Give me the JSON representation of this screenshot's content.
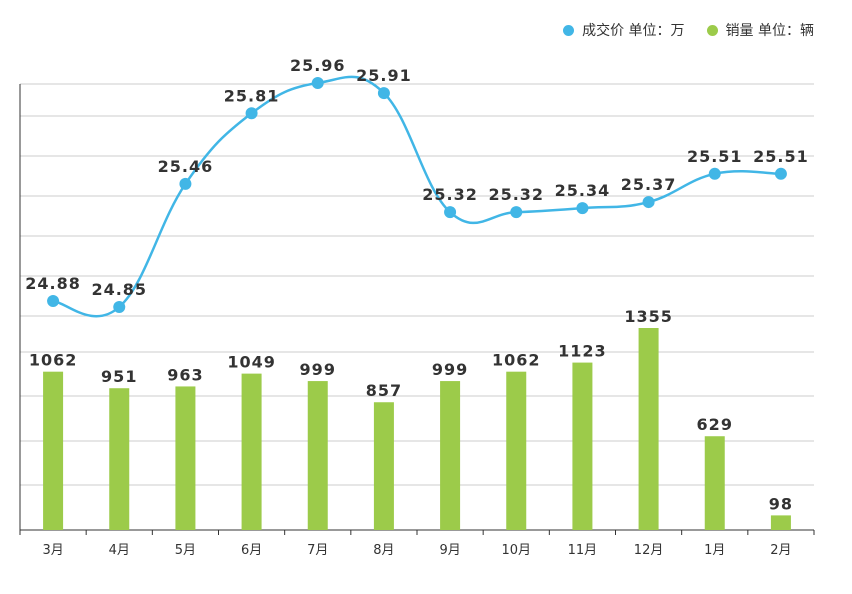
{
  "legend": {
    "series1_label": "成交价  单位：万",
    "series2_label": "销量  单位：辆"
  },
  "colors": {
    "line": "#41b6e6",
    "bar": "#9ccb4a",
    "grid": "#cccccc",
    "axis": "#333333"
  },
  "chart_data": {
    "type": "bar",
    "categories": [
      "3月",
      "4月",
      "5月",
      "6月",
      "7月",
      "8月",
      "9月",
      "10月",
      "11月",
      "12月",
      "1月",
      "2月"
    ],
    "series": [
      {
        "name": "成交价  单位：万",
        "type": "line",
        "smooth": true,
        "values": [
          24.88,
          24.85,
          25.46,
          25.81,
          25.96,
          25.91,
          25.32,
          25.32,
          25.34,
          25.37,
          25.51,
          25.51
        ]
      },
      {
        "name": "销量  单位：辆",
        "type": "bar",
        "values": [
          1062,
          951,
          963,
          1049,
          999,
          857,
          999,
          1062,
          1123,
          1355,
          629,
          98
        ]
      }
    ],
    "legend_position": "top-right",
    "grid": true
  }
}
